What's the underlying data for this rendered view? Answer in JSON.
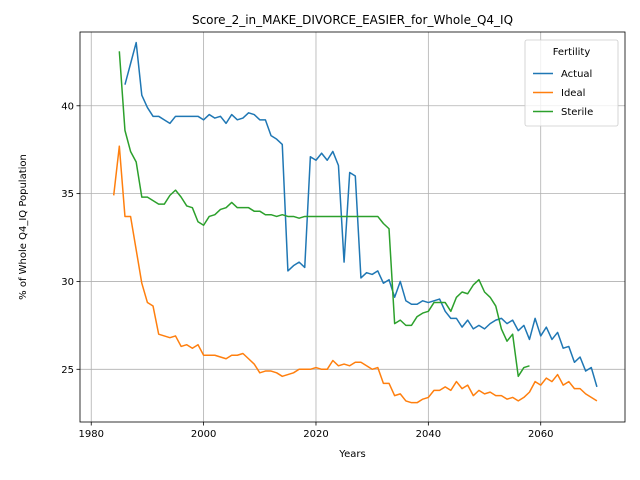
{
  "chart_data": {
    "type": "line",
    "title": "Score_2_in_MAKE_DIVORCE_EASIER_for_Whole_Q4_IQ",
    "xlabel": "Years",
    "ylabel": "% of Whole Q4_IQ Population",
    "xlim": [
      1978,
      2075
    ],
    "ylim": [
      22,
      44.2
    ],
    "xticks": [
      1980,
      2000,
      2020,
      2040,
      2060
    ],
    "yticks": [
      25,
      30,
      35,
      40
    ],
    "grid": true,
    "legend": {
      "title": "Fertility",
      "placement": "top-right"
    },
    "series": [
      {
        "name": "Actual",
        "color": "#1f77b4",
        "x": [
          1986,
          1987,
          1988,
          1989,
          1990,
          1991,
          1992,
          1993,
          1994,
          1995,
          1996,
          1997,
          1998,
          1999,
          2000,
          2001,
          2002,
          2003,
          2004,
          2005,
          2006,
          2007,
          2008,
          2009,
          2010,
          2011,
          2012,
          2013,
          2014,
          2015,
          2016,
          2017,
          2018,
          2019,
          2020,
          2021,
          2022,
          2023,
          2024,
          2025,
          2026,
          2027,
          2028,
          2029,
          2030,
          2031,
          2032,
          2033,
          2034,
          2035,
          2036,
          2037,
          2038,
          2039,
          2040,
          2041,
          2042,
          2043,
          2044,
          2045,
          2046,
          2047,
          2048,
          2049,
          2050,
          2051,
          2052,
          2053,
          2054,
          2055,
          2056,
          2057,
          2058,
          2059,
          2060,
          2061,
          2062,
          2063,
          2064,
          2065,
          2066,
          2067,
          2068,
          2069,
          2070
        ],
        "values": [
          41.2,
          42.4,
          43.6,
          40.6,
          39.9,
          39.4,
          39.4,
          39.2,
          39.0,
          39.4,
          39.4,
          39.4,
          39.4,
          39.4,
          39.2,
          39.5,
          39.3,
          39.4,
          39.0,
          39.5,
          39.2,
          39.3,
          39.6,
          39.5,
          39.2,
          39.2,
          38.3,
          38.1,
          37.8,
          30.6,
          30.9,
          31.1,
          30.8,
          37.1,
          36.9,
          37.3,
          36.9,
          37.4,
          36.6,
          31.1,
          36.2,
          36.0,
          30.2,
          30.5,
          30.4,
          30.6,
          29.9,
          30.1,
          29.1,
          30.0,
          28.9,
          28.7,
          28.7,
          28.9,
          28.8,
          28.9,
          29.0,
          28.3,
          27.9,
          27.9,
          27.4,
          27.8,
          27.3,
          27.5,
          27.3,
          27.6,
          27.8,
          27.9,
          27.6,
          27.8,
          27.2,
          27.5,
          26.7,
          27.9,
          26.9,
          27.4,
          26.7,
          27.1,
          26.2,
          26.3,
          25.4,
          25.7,
          24.9,
          25.1,
          24.0
        ]
      },
      {
        "name": "Ideal",
        "color": "#ff7f0e",
        "x": [
          1984,
          1985,
          1986,
          1987,
          1988,
          1989,
          1990,
          1991,
          1992,
          1993,
          1994,
          1995,
          1996,
          1997,
          1998,
          1999,
          2000,
          2001,
          2002,
          2003,
          2004,
          2005,
          2006,
          2007,
          2008,
          2009,
          2010,
          2011,
          2012,
          2013,
          2014,
          2015,
          2016,
          2017,
          2018,
          2019,
          2020,
          2021,
          2022,
          2023,
          2024,
          2025,
          2026,
          2027,
          2028,
          2029,
          2030,
          2031,
          2032,
          2033,
          2034,
          2035,
          2036,
          2037,
          2038,
          2039,
          2040,
          2041,
          2042,
          2043,
          2044,
          2045,
          2046,
          2047,
          2048,
          2049,
          2050,
          2051,
          2052,
          2053,
          2054,
          2055,
          2056,
          2057,
          2058,
          2059,
          2060,
          2061,
          2062,
          2063,
          2064,
          2065,
          2066,
          2067,
          2068,
          2069,
          2070
        ],
        "values": [
          34.9,
          37.7,
          33.7,
          33.7,
          31.8,
          29.9,
          28.8,
          28.6,
          27.0,
          26.9,
          26.8,
          26.9,
          26.3,
          26.4,
          26.2,
          26.4,
          25.8,
          25.8,
          25.8,
          25.7,
          25.6,
          25.8,
          25.8,
          25.9,
          25.6,
          25.3,
          24.8,
          24.9,
          24.9,
          24.8,
          24.6,
          24.7,
          24.8,
          25.0,
          25.0,
          25.0,
          25.1,
          25.0,
          25.0,
          25.5,
          25.2,
          25.3,
          25.2,
          25.4,
          25.4,
          25.2,
          25.0,
          25.1,
          24.2,
          24.2,
          23.5,
          23.6,
          23.2,
          23.1,
          23.1,
          23.3,
          23.4,
          23.8,
          23.8,
          24.0,
          23.8,
          24.3,
          23.9,
          24.1,
          23.5,
          23.8,
          23.6,
          23.7,
          23.5,
          23.5,
          23.3,
          23.4,
          23.2,
          23.4,
          23.7,
          24.3,
          24.1,
          24.5,
          24.3,
          24.7,
          24.1,
          24.3,
          23.9,
          23.9,
          23.6,
          23.4,
          23.2
        ]
      },
      {
        "name": "Sterile",
        "color": "#2ca02c",
        "x": [
          1985,
          1986,
          1987,
          1988,
          1989,
          1990,
          1991,
          1992,
          1993,
          1994,
          1995,
          1996,
          1997,
          1998,
          1999,
          2000,
          2001,
          2002,
          2003,
          2004,
          2005,
          2006,
          2007,
          2008,
          2009,
          2010,
          2011,
          2012,
          2013,
          2014,
          2015,
          2016,
          2017,
          2018,
          2019,
          2020,
          2021,
          2022,
          2023,
          2024,
          2025,
          2026,
          2027,
          2028,
          2029,
          2030,
          2031,
          2032,
          2033,
          2034,
          2035,
          2036,
          2037,
          2038,
          2039,
          2040,
          2041,
          2042,
          2043,
          2044,
          2045,
          2046,
          2047,
          2048,
          2049,
          2050,
          2051,
          2052,
          2053,
          2054,
          2055,
          2056,
          2057,
          2058
        ],
        "values": [
          43.1,
          38.6,
          37.4,
          36.8,
          34.8,
          34.8,
          34.6,
          34.4,
          34.4,
          34.9,
          35.2,
          34.8,
          34.3,
          34.2,
          33.4,
          33.2,
          33.7,
          33.8,
          34.1,
          34.2,
          34.5,
          34.2,
          34.2,
          34.2,
          34.0,
          34.0,
          33.8,
          33.8,
          33.7,
          33.8,
          33.7,
          33.7,
          33.6,
          33.7,
          33.7,
          33.7,
          33.7,
          33.7,
          33.7,
          33.7,
          33.7,
          33.7,
          33.7,
          33.7,
          33.7,
          33.7,
          33.7,
          33.3,
          33.0,
          27.6,
          27.8,
          27.5,
          27.5,
          28.0,
          28.2,
          28.3,
          28.8,
          28.8,
          28.8,
          28.3,
          29.1,
          29.4,
          29.3,
          29.8,
          30.1,
          29.4,
          29.1,
          28.6,
          27.3,
          26.6,
          27.0,
          24.6,
          25.1,
          25.2
        ]
      }
    ]
  }
}
